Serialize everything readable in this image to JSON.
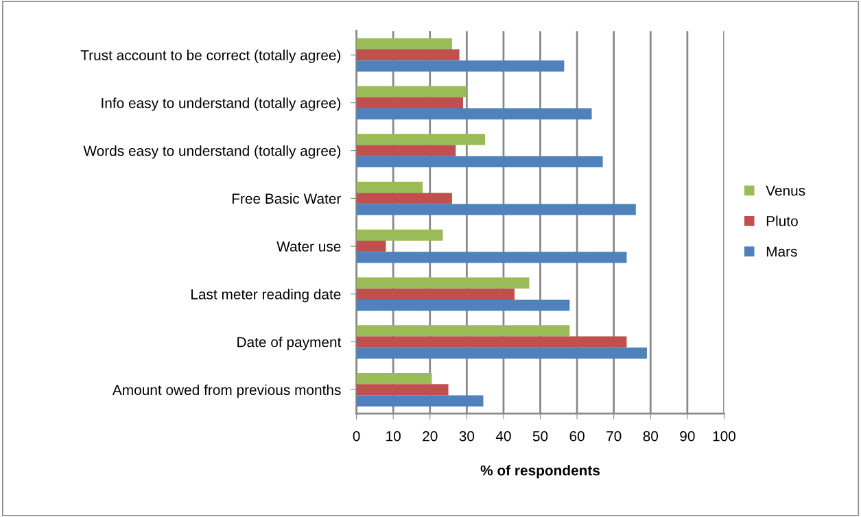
{
  "chart_data": {
    "type": "bar",
    "orientation": "horizontal",
    "xlabel": "% of respondents",
    "categories": [
      "Trust account to be correct (totally agree)",
      "Info easy to understand (totally agree)",
      "Words easy to understand (totally agree)",
      "Free Basic Water",
      "Water use",
      "Last meter reading date",
      "Date of payment",
      "Amount owed from previous months"
    ],
    "series": [
      {
        "name": "Venus",
        "color": "#9bbb59",
        "values": [
          26,
          30,
          35,
          18,
          23.5,
          47,
          58,
          20.5
        ]
      },
      {
        "name": "Pluto",
        "color": "#c0504d",
        "values": [
          28,
          29,
          27,
          26,
          8,
          43,
          73.5,
          25
        ]
      },
      {
        "name": "Mars",
        "color": "#4f81bd",
        "values": [
          56.5,
          64,
          67,
          76,
          73.5,
          58,
          79,
          34.5
        ]
      }
    ],
    "xlim": [
      0,
      100
    ],
    "xticks": [
      0,
      10,
      20,
      30,
      40,
      50,
      60,
      70,
      80,
      90,
      100
    ],
    "grid": "x",
    "legend": "right"
  }
}
